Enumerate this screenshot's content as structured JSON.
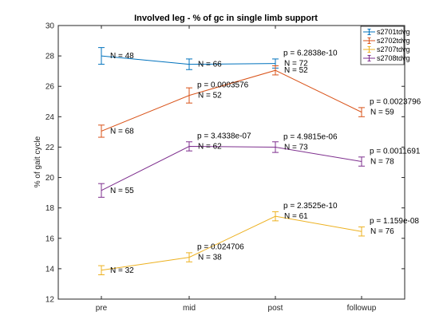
{
  "chart_data": {
    "type": "line",
    "title": "Involved leg - % of gc in single limb support",
    "xlabel": "",
    "ylabel": "% of gait cycle",
    "categories": [
      "pre",
      "mid",
      "post",
      "followup"
    ],
    "ylim": [
      12,
      30
    ],
    "yticks": [
      "12",
      "14",
      "16",
      "18",
      "20",
      "22",
      "24",
      "26",
      "28",
      "30"
    ],
    "grid": false,
    "legend_position": "top-right",
    "series": [
      {
        "name": "s2701tdvg",
        "color": "#0072BD",
        "values": [
          28.0,
          27.45,
          27.5,
          null
        ],
        "errors": [
          0.55,
          0.35,
          0.3,
          null
        ],
        "annotations": [
          {
            "index": 0,
            "text": "N = 48"
          },
          {
            "index": 1,
            "text": "N = 66"
          },
          {
            "index": 2,
            "text": "p = 6.2838e-10"
          },
          {
            "index": 2,
            "text": "N = 72"
          }
        ]
      },
      {
        "name": "s2702tdvg",
        "color": "#D95319",
        "values": [
          23.05,
          25.4,
          27.05,
          24.3
        ],
        "errors": [
          0.4,
          0.5,
          0.3,
          0.3
        ],
        "annotations": [
          {
            "index": 0,
            "text": "N = 68"
          },
          {
            "index": 1,
            "text": "p = 0.0003576"
          },
          {
            "index": 1,
            "text": "N = 52"
          },
          {
            "index": 2,
            "text": "N = 52"
          },
          {
            "index": 3,
            "text": "p = 0.0023796"
          },
          {
            "index": 3,
            "text": "N = 59"
          }
        ]
      },
      {
        "name": "s2707tdvg",
        "color": "#EDB120",
        "values": [
          13.9,
          14.75,
          17.45,
          16.45
        ],
        "errors": [
          0.3,
          0.3,
          0.3,
          0.3
        ],
        "annotations": [
          {
            "index": 0,
            "text": "N = 32"
          },
          {
            "index": 1,
            "text": "p = 0.024706"
          },
          {
            "index": 1,
            "text": "N = 38"
          },
          {
            "index": 2,
            "text": "p = 2.3525e-10"
          },
          {
            "index": 2,
            "text": "N = 61"
          },
          {
            "index": 3,
            "text": "p = 1.159e-08"
          },
          {
            "index": 3,
            "text": "N = 76"
          }
        ]
      },
      {
        "name": "s2708tdvg",
        "color": "#7E2F8E",
        "values": [
          19.15,
          22.05,
          22.0,
          21.05
        ],
        "errors": [
          0.45,
          0.3,
          0.35,
          0.3
        ],
        "annotations": [
          {
            "index": 0,
            "text": "N = 55"
          },
          {
            "index": 1,
            "text": "p = 3.4338e-07"
          },
          {
            "index": 1,
            "text": "N = 62"
          },
          {
            "index": 2,
            "text": "p = 4.9815e-06"
          },
          {
            "index": 2,
            "text": "N = 73"
          },
          {
            "index": 3,
            "text": "p = 0.0011691"
          },
          {
            "index": 3,
            "text": "N = 78"
          }
        ]
      }
    ]
  }
}
